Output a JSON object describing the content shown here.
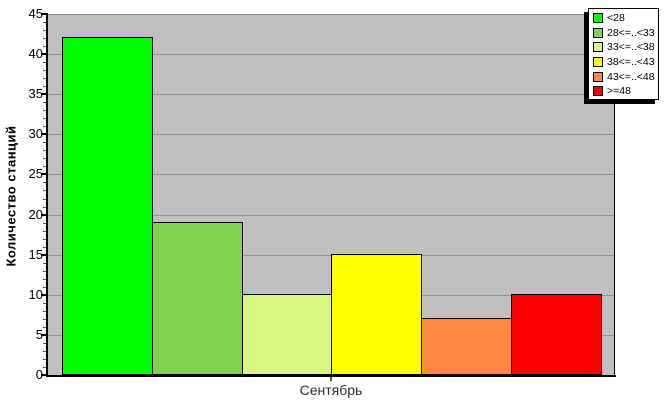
{
  "chart_data": {
    "type": "bar",
    "title": "",
    "xlabel": "Сентябрь",
    "ylabel": "Количество станций",
    "categories": [
      "<28",
      "28<=..<33",
      "33<=..<38",
      "38<=..<43",
      "43<=..<48",
      ">=48"
    ],
    "values": [
      42,
      19,
      10,
      15,
      7,
      10
    ],
    "bar_colors": [
      "#00FF00",
      "#7FD34C",
      "#D9F780",
      "#FFFF00",
      "#FF8844",
      "#FF0000"
    ],
    "ylim": [
      0,
      45
    ],
    "ytick_step": 5,
    "ytick_labels": [
      "0",
      "5",
      "10",
      "15",
      "20",
      "25",
      "30",
      "35",
      "40",
      "45"
    ],
    "grid": true,
    "grid_color": "#909090",
    "plot_background": "#C0C0C0",
    "legend_position": "top-right"
  },
  "legend": {
    "items": [
      {
        "label": "<28",
        "color": "#00FF00"
      },
      {
        "label": "28<=..<33",
        "color": "#7FD34C"
      },
      {
        "label": "33<=..<38",
        "color": "#D9F780"
      },
      {
        "label": "38<=..<43",
        "color": "#FFFF00"
      },
      {
        "label": "43<=..<48",
        "color": "#FF8844"
      },
      {
        "label": ">=48",
        "color": "#FF0000"
      }
    ]
  },
  "axes": {
    "x_label": "Сентябрь",
    "y_title": "Количество станций"
  }
}
